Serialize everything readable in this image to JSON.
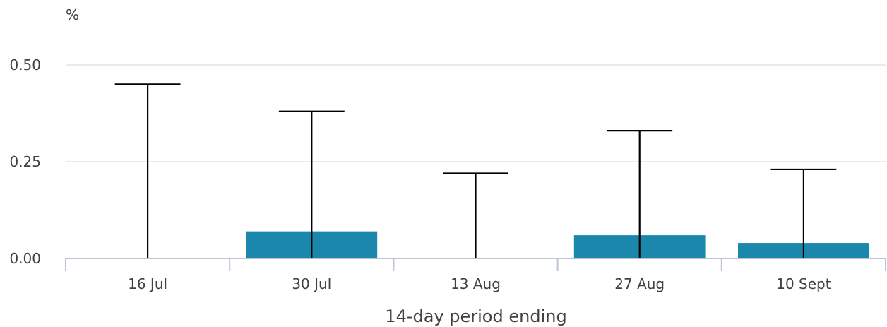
{
  "chart_data": {
    "type": "bar",
    "unit_label": "%",
    "xlabel": "14-day period ending",
    "categories": [
      "16 Jul",
      "30 Jul",
      "13 Aug",
      "27 Aug",
      "10 Sept"
    ],
    "values": [
      0.0,
      0.07,
      0.0,
      0.06,
      0.04
    ],
    "error_lower": [
      0.0,
      0.0,
      0.0,
      0.0,
      0.0
    ],
    "error_upper": [
      0.45,
      0.38,
      0.22,
      0.33,
      0.23
    ],
    "ylim": [
      0,
      0.5
    ],
    "yticks": [
      "0.00",
      "0.25",
      "0.50"
    ],
    "grid": true,
    "colors": {
      "bar": "#1b87ad",
      "error_bar": "#000000",
      "baseline": "#bcc4d6",
      "grid": "#e4e4e4"
    }
  }
}
